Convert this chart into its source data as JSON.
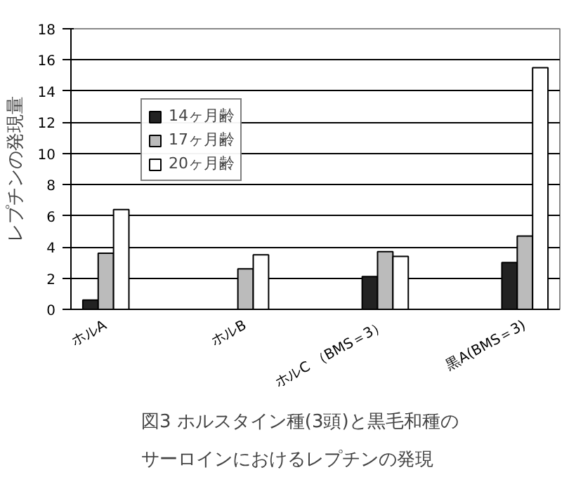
{
  "chart_data": {
    "type": "bar",
    "title": "図3 ホルスタイン種(3頭)と黒毛和種の",
    "subtitle": "サーロインにおけるレプチンの発現",
    "ylabel": "レプチンの発現量",
    "categories": [
      "ホルA",
      null,
      "ホルB",
      null,
      "ホルC （BMS＝3）",
      null,
      "黒A(BMS＝3)"
    ],
    "series": [
      {
        "name": "14ヶ月齢",
        "color": "#222222",
        "values": [
          0.6,
          null,
          null,
          null,
          2.1,
          null,
          3.0
        ]
      },
      {
        "name": "17ヶ月齢",
        "color": "#bbbbbb",
        "values": [
          3.6,
          null,
          2.6,
          null,
          3.7,
          null,
          4.7
        ]
      },
      {
        "name": "20ヶ月齢",
        "color": "#ffffff",
        "values": [
          6.4,
          null,
          3.5,
          null,
          3.4,
          null,
          15.5
        ]
      }
    ],
    "ylim": [
      0,
      18
    ],
    "yticks": [
      0,
      2,
      4,
      6,
      8,
      10,
      12,
      14,
      16,
      18
    ],
    "grid": "y",
    "legend": "top left"
  }
}
